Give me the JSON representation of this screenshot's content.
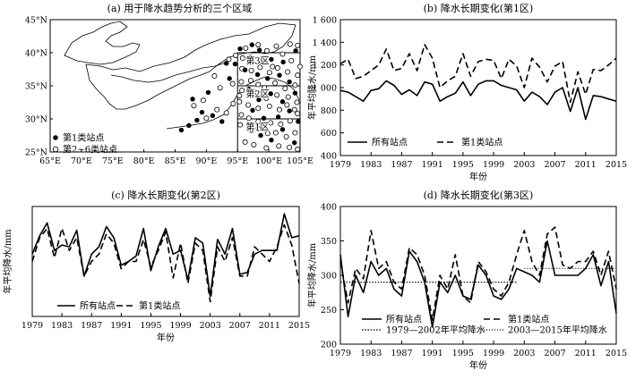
{
  "map_panel": {
    "title": "(a) 用于降水趋势分析的三个区域",
    "lon_ticks": [
      "65°E",
      "70°E",
      "75°E",
      "80°E",
      "85°E",
      "90°E",
      "95°E",
      "100°E",
      "105°E"
    ],
    "lat_ticks": [
      "25°N",
      "30°N",
      "35°N",
      "40°N",
      "45°N"
    ],
    "region_labels": [
      "第3区",
      "第2区",
      "第1区"
    ],
    "legend": [
      "第1类站点",
      "第2~6类站点"
    ],
    "class1_stations": [
      [
        86,
        28.3
      ],
      [
        87.2,
        29
      ],
      [
        88.5,
        29.8
      ],
      [
        89.3,
        31
      ],
      [
        91,
        30.5
      ],
      [
        92.5,
        29.6
      ],
      [
        87.8,
        33
      ],
      [
        90.3,
        34
      ],
      [
        93.7,
        36.1
      ],
      [
        93.2,
        38.4
      ],
      [
        94.6,
        38.3
      ],
      [
        95.4,
        40.6
      ],
      [
        97.3,
        41.2
      ],
      [
        98.5,
        40.4
      ],
      [
        100.4,
        39
      ],
      [
        102.3,
        38.6
      ],
      [
        104.3,
        40.3
      ],
      [
        96.2,
        37.4
      ],
      [
        98.2,
        36.7
      ],
      [
        99.8,
        36.1
      ],
      [
        101.7,
        36.6
      ],
      [
        103.3,
        35.6
      ],
      [
        96.8,
        34.5
      ],
      [
        98.4,
        32.9
      ],
      [
        100.3,
        33.8
      ],
      [
        102.2,
        32.6
      ],
      [
        104.2,
        33.9
      ],
      [
        97.4,
        31.3
      ],
      [
        99.2,
        30.1
      ],
      [
        101.5,
        30.3
      ],
      [
        103.3,
        31.2
      ],
      [
        104.7,
        29.6
      ],
      [
        96.9,
        28.8
      ],
      [
        98.7,
        27.5
      ],
      [
        100.4,
        26.8
      ],
      [
        102.2,
        28.4
      ],
      [
        104.1,
        26.4
      ]
    ],
    "other_stations": [
      [
        88,
        32
      ],
      [
        89.5,
        32.8
      ],
      [
        90,
        30.1
      ],
      [
        91.7,
        31.4
      ],
      [
        93.2,
        30.9
      ],
      [
        94.3,
        32.3
      ],
      [
        92.2,
        34.7
      ],
      [
        94.2,
        35.3
      ],
      [
        95.3,
        33.5
      ],
      [
        91.3,
        36.5
      ],
      [
        93.6,
        39
      ],
      [
        94.7,
        39.6
      ],
      [
        96.3,
        40.7
      ],
      [
        98.3,
        41.2
      ],
      [
        99.7,
        40.3
      ],
      [
        101.2,
        41
      ],
      [
        103.4,
        41.3
      ],
      [
        104.6,
        41.1
      ],
      [
        95.8,
        39.2
      ],
      [
        97.1,
        39.3
      ],
      [
        98.8,
        38.6
      ],
      [
        100.6,
        37.9
      ],
      [
        102.2,
        39.8
      ],
      [
        103.6,
        38.8
      ],
      [
        105,
        37.9
      ],
      [
        95.7,
        37.6
      ],
      [
        97.2,
        37.3
      ],
      [
        98.6,
        37.8
      ],
      [
        100.1,
        37
      ],
      [
        101.4,
        37.7
      ],
      [
        103,
        37.1
      ],
      [
        104.6,
        36.6
      ],
      [
        95.6,
        35.6
      ],
      [
        97.1,
        35.8
      ],
      [
        98.3,
        35.2
      ],
      [
        99.3,
        34.7
      ],
      [
        101,
        35.4
      ],
      [
        102.6,
        34.6
      ],
      [
        104.2,
        35.1
      ],
      [
        95.7,
        34.3
      ],
      [
        97.6,
        33.6
      ],
      [
        99.6,
        33.1
      ],
      [
        101.3,
        33.6
      ],
      [
        103.1,
        33.3
      ],
      [
        104.5,
        32.5
      ],
      [
        95.3,
        32.6
      ],
      [
        96.7,
        32.1
      ],
      [
        98.3,
        31.6
      ],
      [
        100.1,
        31.9
      ],
      [
        101.7,
        31.4
      ],
      [
        102.9,
        32.1
      ],
      [
        104.1,
        31.4
      ],
      [
        95.6,
        30.6
      ],
      [
        96.8,
        30.1
      ],
      [
        98.3,
        29.6
      ],
      [
        100.3,
        29.4
      ],
      [
        101.9,
        29.2
      ],
      [
        103.4,
        29.7
      ],
      [
        104.6,
        30.8
      ],
      [
        95.4,
        29.1
      ],
      [
        97.2,
        28.3
      ],
      [
        98.3,
        28.5
      ],
      [
        99.8,
        27.8
      ],
      [
        101.1,
        27.9
      ],
      [
        102.8,
        27.3
      ],
      [
        104.2,
        27.9
      ],
      [
        96.2,
        26.5
      ],
      [
        97.6,
        26.1
      ],
      [
        99.6,
        25.6
      ],
      [
        101.6,
        25.9
      ],
      [
        103.3,
        25.7
      ],
      [
        104.6,
        25.4
      ]
    ]
  },
  "chart_data": [
    {
      "type": "line",
      "title": "(b) 降水长期变化(第1区)",
      "xlabel": "年份",
      "ylabel": "年平均降水/mm",
      "x": [
        1979,
        1980,
        1981,
        1982,
        1983,
        1984,
        1985,
        1986,
        1987,
        1988,
        1989,
        1990,
        1991,
        1992,
        1993,
        1994,
        1995,
        1996,
        1997,
        1998,
        1999,
        2000,
        2001,
        2002,
        2003,
        2004,
        2005,
        2006,
        2007,
        2008,
        2009,
        2010,
        2011,
        2012,
        2013,
        2014,
        2015
      ],
      "xticks": [
        1979,
        1983,
        1987,
        1991,
        1995,
        1999,
        2003,
        2007,
        2011,
        2015
      ],
      "ylim": [
        400,
        1600
      ],
      "yticks": [
        400,
        600,
        800,
        1000,
        1200,
        1400,
        1600
      ],
      "ytick_labels": [
        "400",
        "600",
        "800",
        "1 000",
        "1 200",
        "1 400",
        "1 600"
      ],
      "series": [
        {
          "name": "所有站点",
          "style": "solid",
          "values": [
            975,
            960,
            920,
            880,
            975,
            990,
            1060,
            1020,
            940,
            980,
            930,
            1050,
            1030,
            880,
            920,
            950,
            1050,
            930,
            1030,
            1060,
            1060,
            1020,
            1000,
            980,
            880,
            960,
            920,
            850,
            960,
            1000,
            790,
            1000,
            720,
            930,
            920,
            900,
            880
          ]
        },
        {
          "name": "第1类站点",
          "style": "dashed",
          "values": [
            1210,
            1250,
            1080,
            1100,
            1150,
            1200,
            1340,
            1150,
            1170,
            1300,
            1150,
            1380,
            1260,
            1000,
            1060,
            1100,
            1300,
            1100,
            1230,
            1250,
            1240,
            1080,
            1250,
            1190,
            1000,
            1260,
            1180,
            1050,
            1190,
            1230,
            870,
            1140,
            940,
            1160,
            1150,
            1200,
            1260
          ]
        }
      ],
      "legend": [
        "所有站点",
        "第1类站点"
      ]
    },
    {
      "type": "line",
      "title": "(c) 降水长期变化(第2区)",
      "xlabel": "年份",
      "ylabel": "年平均降水/mm",
      "x": [
        1979,
        1980,
        1981,
        1982,
        1983,
        1984,
        1985,
        1986,
        1987,
        1988,
        1989,
        1990,
        1991,
        1992,
        1993,
        1994,
        1995,
        1996,
        1997,
        1998,
        1999,
        2000,
        2001,
        2002,
        2003,
        2004,
        2005,
        2006,
        2007,
        2008,
        2009,
        2010,
        2011,
        2012,
        2013,
        2014,
        2015
      ],
      "xticks": [
        1979,
        1983,
        1987,
        1991,
        1995,
        1999,
        2003,
        2007,
        2011,
        2015
      ],
      "ylim": [
        450,
        750
      ],
      "yticks": [],
      "ytick_labels": [],
      "series": [
        {
          "name": "所有站点",
          "style": "solid",
          "values": [
            620,
            670,
            705,
            630,
            645,
            640,
            685,
            560,
            620,
            640,
            695,
            665,
            590,
            600,
            615,
            690,
            575,
            640,
            690,
            620,
            630,
            550,
            665,
            650,
            505,
            660,
            620,
            690,
            565,
            570,
            620,
            630,
            630,
            630,
            730,
            665,
            670
          ]
        },
        {
          "name": "第1类站点",
          "style": "dashed",
          "values": [
            600,
            665,
            690,
            610,
            690,
            630,
            665,
            560,
            600,
            620,
            675,
            650,
            580,
            600,
            600,
            660,
            585,
            630,
            680,
            555,
            650,
            540,
            650,
            630,
            490,
            640,
            600,
            665,
            560,
            560,
            640,
            620,
            600,
            640,
            700,
            645,
            540
          ]
        }
      ],
      "legend": [
        "所有站点",
        "第1类站点"
      ]
    },
    {
      "type": "line",
      "title": "(d) 降水长期变化(第3区)",
      "xlabel": "年份",
      "ylabel": "年平均降水/mm",
      "x": [
        1979,
        1980,
        1981,
        1982,
        1983,
        1984,
        1985,
        1986,
        1987,
        1988,
        1989,
        1990,
        1991,
        1992,
        1993,
        1994,
        1995,
        1996,
        1997,
        1998,
        1999,
        2000,
        2001,
        2002,
        2003,
        2004,
        2005,
        2006,
        2007,
        2008,
        2009,
        2010,
        2011,
        2012,
        2013,
        2014,
        2015
      ],
      "xticks": [
        1979,
        1983,
        1987,
        1991,
        1995,
        1999,
        2003,
        2007,
        2011,
        2015
      ],
      "ylim": [
        200,
        400
      ],
      "yticks": [
        200,
        250,
        300,
        350,
        400
      ],
      "ytick_labels": [
        "200",
        "250",
        "300",
        "350",
        "400"
      ],
      "series": [
        {
          "name": "所有站点",
          "style": "solid",
          "values": [
            330,
            240,
            300,
            275,
            320,
            300,
            310,
            280,
            270,
            335,
            320,
            290,
            225,
            290,
            275,
            300,
            270,
            265,
            315,
            300,
            270,
            265,
            280,
            310,
            305,
            300,
            290,
            350,
            300,
            300,
            300,
            300,
            310,
            330,
            285,
            320,
            245
          ]
        },
        {
          "name": "第1类站点",
          "style": "dashed",
          "values": [
            320,
            260,
            310,
            295,
            365,
            310,
            320,
            290,
            280,
            340,
            330,
            300,
            235,
            300,
            280,
            330,
            270,
            260,
            320,
            305,
            280,
            270,
            290,
            330,
            365,
            320,
            300,
            360,
            370,
            315,
            310,
            320,
            320,
            335,
            300,
            335,
            280
          ]
        }
      ],
      "mean_lines": [
        {
          "name": "1979—2002年平均降水",
          "style": "dotted",
          "x_from": 1979,
          "x_to": 2002,
          "value": 290
        },
        {
          "name": "2003—2015年平均降水",
          "style": "fine-dotted",
          "x_from": 2003,
          "x_to": 2015,
          "value": 310
        }
      ],
      "legend": [
        "所有站点",
        "第1类站点",
        "1979—2002年平均降水",
        "2003—2015年平均降水"
      ]
    }
  ]
}
